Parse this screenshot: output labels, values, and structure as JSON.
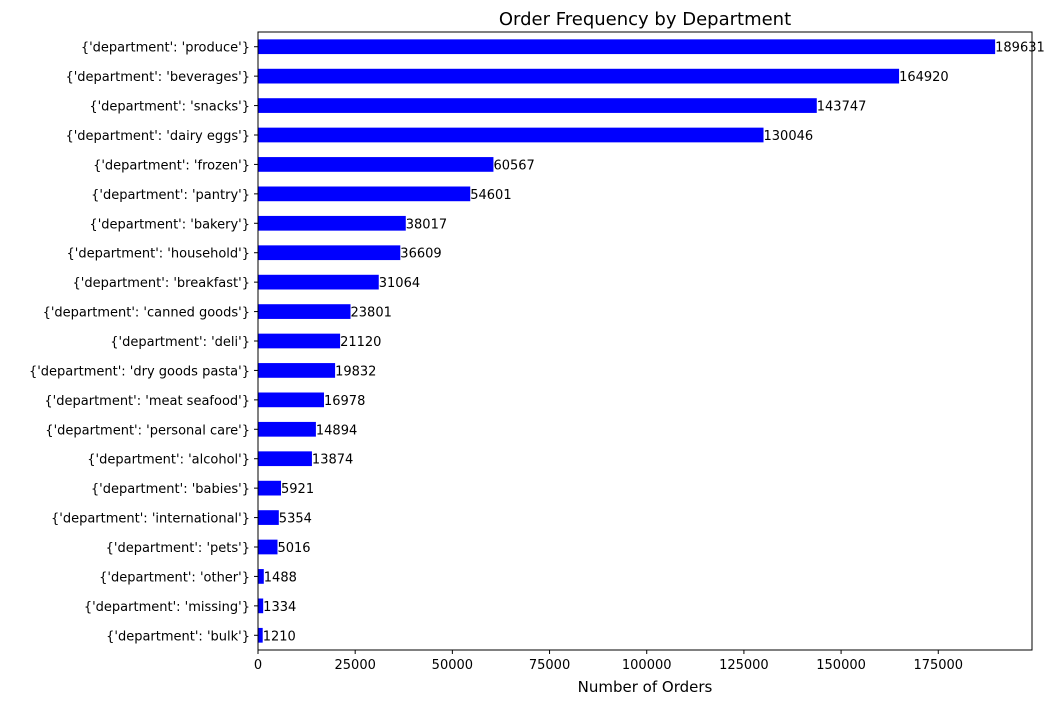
{
  "chart_data": {
    "type": "bar",
    "orientation": "horizontal",
    "title": "Order Frequency by Department",
    "xlabel": "Number of Orders",
    "ylabel": "",
    "categories": [
      "{'department': 'produce'}",
      "{'department': 'beverages'}",
      "{'department': 'snacks'}",
      "{'department': 'dairy eggs'}",
      "{'department': 'frozen'}",
      "{'department': 'pantry'}",
      "{'department': 'bakery'}",
      "{'department': 'household'}",
      "{'department': 'breakfast'}",
      "{'department': 'canned goods'}",
      "{'department': 'deli'}",
      "{'department': 'dry goods pasta'}",
      "{'department': 'meat seafood'}",
      "{'department': 'personal care'}",
      "{'department': 'alcohol'}",
      "{'department': 'babies'}",
      "{'department': 'international'}",
      "{'department': 'pets'}",
      "{'department': 'other'}",
      "{'department': 'missing'}",
      "{'department': 'bulk'}"
    ],
    "values": [
      189631,
      164920,
      143747,
      130046,
      60567,
      54601,
      38017,
      36609,
      31064,
      23801,
      21120,
      19832,
      16978,
      14894,
      13874,
      5921,
      5354,
      5016,
      1488,
      1334,
      1210
    ],
    "xlim": [
      0,
      199113
    ],
    "xticks": [
      0,
      25000,
      50000,
      75000,
      100000,
      125000,
      150000,
      175000
    ],
    "xtick_labels": [
      "0",
      "25000",
      "50000",
      "75000",
      "100000",
      "125000",
      "150000",
      "175000"
    ],
    "bar_color": "#0000ff",
    "grid": false,
    "legend": false
  }
}
